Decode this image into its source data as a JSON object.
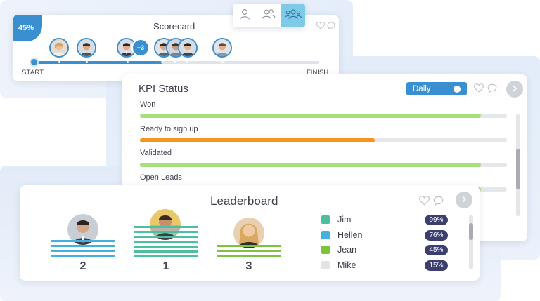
{
  "scorecard": {
    "title": "Scorecard",
    "progress_label": "45%",
    "progress": 0.45,
    "start_label": "START",
    "finish_label": "FINISH",
    "extra_count": "+3",
    "accent": "#3a8fd0",
    "icons": [
      "heart-icon",
      "comment-icon"
    ]
  },
  "view_toggle": {
    "options": [
      "single-user-icon",
      "two-users-icon",
      "team-icon"
    ],
    "active": "team-icon"
  },
  "kpi_status": {
    "title": "KPI Status",
    "period_toggle_label": "Daily",
    "rows": [
      {
        "label": "Won",
        "value": 0.93,
        "color": "#a5e07a"
      },
      {
        "label": "Ready to sign up",
        "value": 0.64,
        "color": "#f7941e"
      },
      {
        "label": "Validated",
        "value": 0.93,
        "color": "#a5e07a"
      },
      {
        "label": "Open Leads",
        "value": 0.93,
        "color": "#a5e07a"
      }
    ]
  },
  "leaderboard": {
    "title": "Leaderboard",
    "podium": [
      {
        "rank": "2",
        "color": "#42b0e0"
      },
      {
        "rank": "1",
        "color": "#4cbfa0"
      },
      {
        "rank": "3",
        "color": "#7dc242"
      }
    ],
    "legend": [
      {
        "name": "Jim",
        "pct": "99%",
        "color": "#4cbfa0"
      },
      {
        "name": "Hellen",
        "pct": "76%",
        "color": "#42b0e0"
      },
      {
        "name": "Jean",
        "pct": "45%",
        "color": "#7dc242"
      },
      {
        "name": "Mike",
        "pct": "15%",
        "color": "#e3e4e6"
      }
    ]
  }
}
